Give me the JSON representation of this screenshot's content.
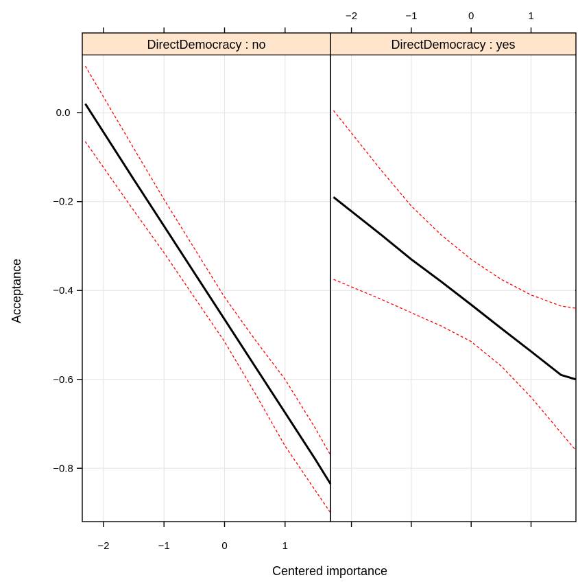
{
  "chart_data": {
    "type": "line",
    "xlabel": "Centered importance",
    "ylabel": "Acceptance",
    "xlim": [
      -2.35,
      1.75
    ],
    "ylim": [
      -0.92,
      0.13
    ],
    "x_ticks": [
      -2,
      -1,
      0,
      1
    ],
    "x_tick_labels": [
      "−2",
      "−1",
      "0",
      "1"
    ],
    "y_ticks": [
      0.0,
      -0.2,
      -0.4,
      -0.6,
      -0.8
    ],
    "y_tick_labels": [
      "0.0",
      "−0.2",
      "−0.4",
      "−0.6",
      "−0.8"
    ],
    "grid": true,
    "colors": {
      "strip_fill": "#ffe5cc",
      "fit_line": "#000000",
      "ci_line": "#ff0000",
      "grid": "#e6e6e6"
    },
    "panels": [
      {
        "label": "DirectDemocracy : no",
        "x": [
          -2.3,
          -1.5,
          -1.0,
          -0.5,
          0.0,
          0.5,
          1.0,
          1.5,
          1.75
        ],
        "fit": [
          0.02,
          -0.15,
          -0.255,
          -0.36,
          -0.465,
          -0.57,
          -0.675,
          -0.78,
          -0.835
        ],
        "lower": [
          -0.065,
          -0.22,
          -0.315,
          -0.415,
          -0.515,
          -0.63,
          -0.75,
          -0.85,
          -0.9
        ],
        "upper": [
          0.105,
          -0.08,
          -0.195,
          -0.305,
          -0.415,
          -0.51,
          -0.6,
          -0.71,
          -0.77
        ]
      },
      {
        "label": "DirectDemocracy : yes",
        "x": [
          -2.3,
          -1.5,
          -1.0,
          -0.5,
          0.0,
          0.5,
          1.0,
          1.5,
          1.75
        ],
        "fit": [
          -0.19,
          -0.275,
          -0.33,
          -0.38,
          -0.432,
          -0.485,
          -0.537,
          -0.59,
          -0.6
        ],
        "lower": [
          -0.375,
          -0.42,
          -0.45,
          -0.48,
          -0.515,
          -0.57,
          -0.64,
          -0.72,
          -0.76
        ],
        "upper": [
          0.005,
          -0.13,
          -0.21,
          -0.275,
          -0.33,
          -0.375,
          -0.41,
          -0.435,
          -0.44
        ]
      }
    ]
  }
}
